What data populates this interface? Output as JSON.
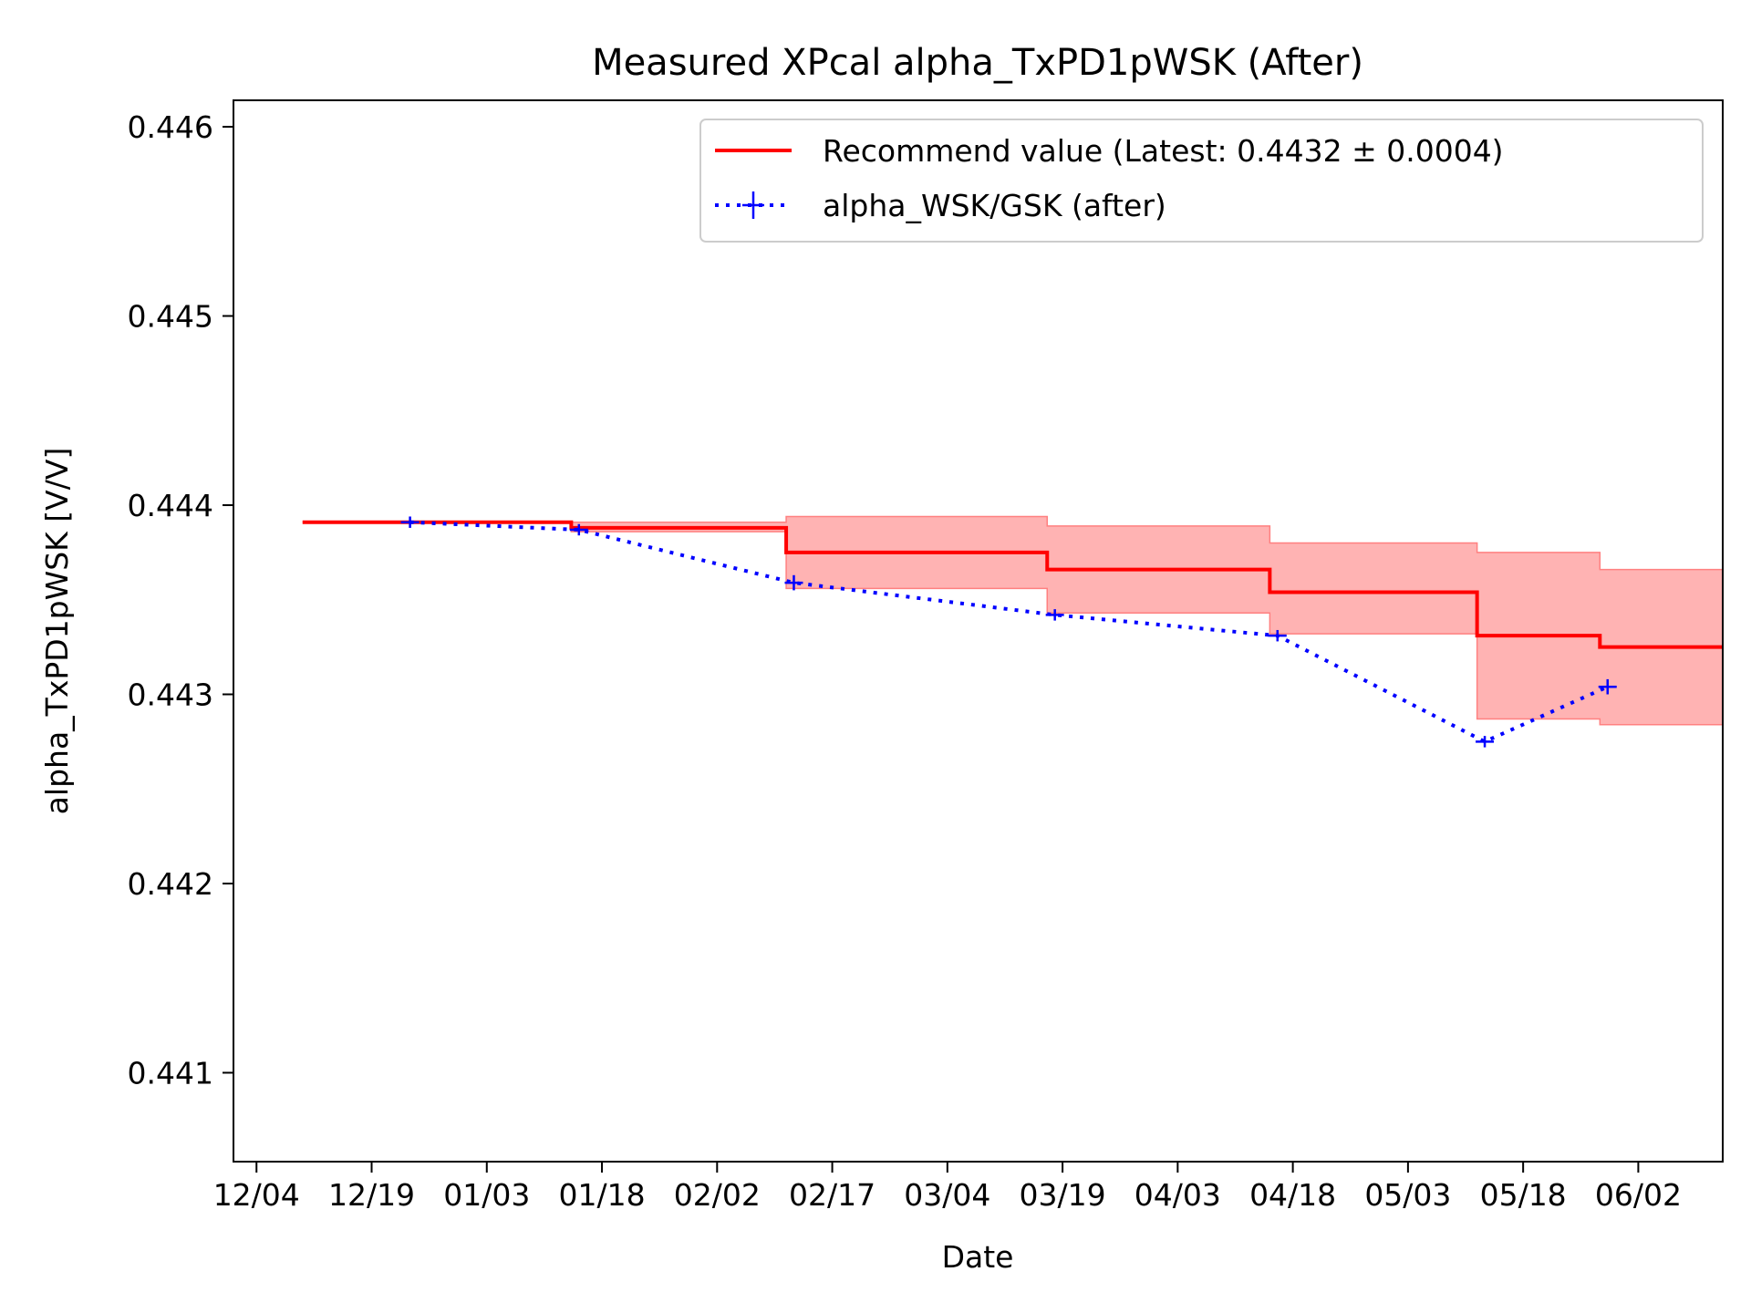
{
  "chart_data": {
    "type": "line",
    "title": "Measured XPcal alpha_TxPD1pWSK (After)",
    "xlabel": "Date",
    "ylabel": "alpha_TxPD1pWSK [V/V]",
    "xlim": [
      "12/01",
      "06/13"
    ],
    "ylim": [
      0.44053,
      0.44614
    ],
    "x_ticks": [
      "12/04",
      "12/19",
      "01/03",
      "01/18",
      "02/02",
      "02/17",
      "03/04",
      "03/19",
      "04/03",
      "04/18",
      "05/03",
      "05/18",
      "06/02"
    ],
    "y_ticks": [
      "0.441",
      "0.442",
      "0.443",
      "0.444",
      "0.445",
      "0.446"
    ],
    "legend": {
      "position": "upper-right"
    },
    "grid": false,
    "colors": {
      "recommend": "#ff0000",
      "band": "#ffb3b3",
      "band_edge": "#ff8080",
      "measured": "#0000ff"
    },
    "series": [
      {
        "name": "Recommend value (Latest: 0.4432 ± 0.0004)",
        "style": "step",
        "x": [
          "12/10",
          "01/14",
          "02/11",
          "03/17",
          "04/15",
          "05/12",
          "05/28",
          "06/13"
        ],
        "y": [
          0.44391,
          0.44388,
          0.44375,
          0.44366,
          0.44354,
          0.44331,
          0.44325,
          0.44325
        ],
        "lower": [
          0.44391,
          0.44386,
          0.44356,
          0.44343,
          0.44332,
          0.44287,
          0.44284,
          0.44284
        ],
        "upper": [
          0.44391,
          0.44391,
          0.44394,
          0.44389,
          0.4438,
          0.44375,
          0.44366,
          0.44366
        ]
      },
      {
        "name": "alpha_WSK/GSK (after)",
        "style": "dotted-errorbar",
        "x": [
          "12/24",
          "01/15",
          "02/12",
          "03/18",
          "04/16",
          "05/13",
          "05/29"
        ],
        "y": [
          0.44391,
          0.44387,
          0.44359,
          0.44342,
          0.44331,
          0.44275,
          0.44304
        ],
        "yerr": [
          3e-05,
          3e-05,
          4e-05,
          3e-05,
          3e-05,
          3e-05,
          4e-05
        ]
      }
    ]
  }
}
